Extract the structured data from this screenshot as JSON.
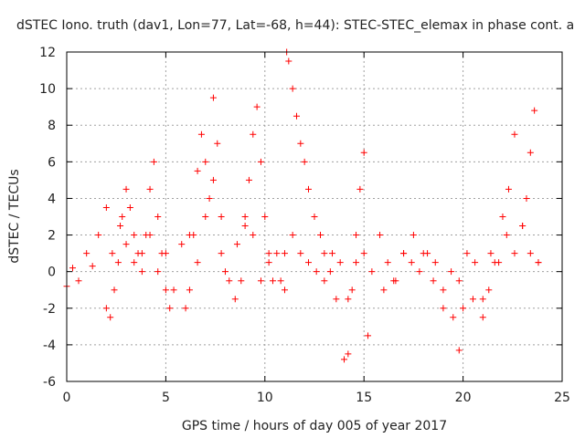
{
  "chart_data": {
    "type": "scatter",
    "title": "dSTEC Iono. truth (dav1, Lon=77, Lat=-68, h=44): STEC-STEC_elemax in phase cont. a",
    "xlabel": "GPS time / hours of day 005 of year 2017",
    "ylabel": "dSTEC  / TECUs",
    "xlim": [
      0,
      25
    ],
    "ylim": [
      -6,
      12
    ],
    "xticks": [
      0,
      5,
      10,
      15,
      20,
      25
    ],
    "yticks": [
      -6,
      -4,
      -2,
      0,
      2,
      4,
      6,
      8,
      10,
      12
    ],
    "grid": true,
    "marker": "+",
    "color": "#ff0000",
    "series": [
      {
        "x": [
          0.0,
          0.3,
          0.6,
          1.0,
          1.3,
          1.6,
          2.0,
          2.3,
          2.7,
          3.0,
          3.4,
          3.8,
          4.2,
          4.6,
          5.0,
          5.4,
          5.8,
          6.2,
          6.6,
          7.0,
          7.4,
          7.8,
          8.2,
          8.6,
          9.0,
          9.4,
          9.8,
          10.2,
          10.6,
          11.0,
          11.4,
          11.8,
          12.2,
          12.6,
          13.0,
          13.4,
          13.8,
          14.2,
          14.6,
          15.0,
          15.4,
          15.8,
          16.2,
          16.6,
          17.0,
          17.4,
          17.8,
          18.2,
          18.6,
          19.0,
          19.4,
          19.8,
          20.2,
          20.6,
          21.0,
          21.4,
          21.8,
          22.2,
          22.6,
          23.0,
          23.4,
          23.8
        ],
        "y": [
          -0.8,
          0.2,
          -0.5,
          1.0,
          0.3,
          2.0,
          3.5,
          1.0,
          2.5,
          1.5,
          0.5,
          1.0,
          2.0,
          0.0,
          1.0,
          -1.0,
          1.5,
          2.0,
          0.5,
          3.0,
          5.0,
          1.0,
          -0.5,
          1.5,
          3.0,
          2.0,
          -0.5,
          0.5,
          1.0,
          -1.0,
          2.0,
          1.0,
          0.5,
          0.0,
          -0.5,
          1.0,
          0.5,
          -1.5,
          0.5,
          1.0,
          0.0,
          2.0,
          0.5,
          -0.5,
          1.0,
          0.5,
          0.0,
          1.0,
          0.5,
          -1.0,
          0.0,
          -0.5,
          1.0,
          0.5,
          -1.5,
          1.0,
          0.5,
          2.0,
          1.0,
          2.5,
          1.0,
          0.5
        ]
      },
      {
        "x": [
          2.0,
          2.2,
          2.4,
          2.6,
          2.8,
          3.0,
          3.2,
          3.4,
          3.6,
          3.8
        ],
        "y": [
          -2.0,
          -2.5,
          -1.0,
          0.5,
          3.0,
          4.5,
          3.5,
          2.0,
          1.0,
          0.0
        ]
      },
      {
        "x": [
          4.0,
          4.2,
          4.4,
          4.6,
          4.8,
          5.0,
          5.2
        ],
        "y": [
          2.0,
          4.5,
          6.0,
          3.0,
          1.0,
          -1.0,
          -2.0
        ]
      },
      {
        "x": [
          6.0,
          6.2,
          6.4,
          6.6,
          6.8,
          7.0,
          7.2,
          7.4,
          7.6,
          7.8,
          8.0
        ],
        "y": [
          -2.0,
          -1.0,
          2.0,
          5.5,
          7.5,
          6.0,
          4.0,
          9.5,
          7.0,
          3.0,
          0.0
        ]
      },
      {
        "x": [
          8.5,
          8.8,
          9.0,
          9.2,
          9.4,
          9.6,
          9.8,
          10.0,
          10.2,
          10.4
        ],
        "y": [
          -1.5,
          -0.5,
          2.5,
          5.0,
          7.5,
          9.0,
          6.0,
          3.0,
          1.0,
          -0.5
        ]
      },
      {
        "x": [
          10.8,
          11.0,
          11.1,
          11.2,
          11.4,
          11.6,
          11.8,
          12.0,
          12.2,
          12.5,
          12.8,
          13.0,
          13.3,
          13.6
        ],
        "y": [
          -0.5,
          1.0,
          12.0,
          11.5,
          10.0,
          8.5,
          7.0,
          6.0,
          4.5,
          3.0,
          2.0,
          1.0,
          0.0,
          -1.5
        ]
      },
      {
        "x": [
          14.0,
          14.2,
          14.4,
          14.6,
          14.8,
          15.0,
          15.2
        ],
        "y": [
          -4.8,
          -4.5,
          -1.0,
          2.0,
          4.5,
          6.5,
          -3.5
        ]
      },
      {
        "x": [
          16.0,
          16.5,
          17.0,
          17.5,
          18.0,
          18.5,
          19.0,
          19.5,
          19.8,
          20.0
        ],
        "y": [
          -1.0,
          -0.5,
          1.0,
          2.0,
          1.0,
          -0.5,
          -2.0,
          -2.5,
          -4.3,
          -2.0
        ]
      },
      {
        "x": [
          20.5,
          21.0,
          21.3,
          21.6,
          22.0,
          22.3,
          22.6,
          23.0,
          23.2,
          23.4,
          23.6,
          23.8
        ],
        "y": [
          -1.5,
          -2.5,
          -1.0,
          0.5,
          3.0,
          4.5,
          7.5,
          2.5,
          4.0,
          6.5,
          8.8,
          0.5
        ]
      }
    ]
  }
}
